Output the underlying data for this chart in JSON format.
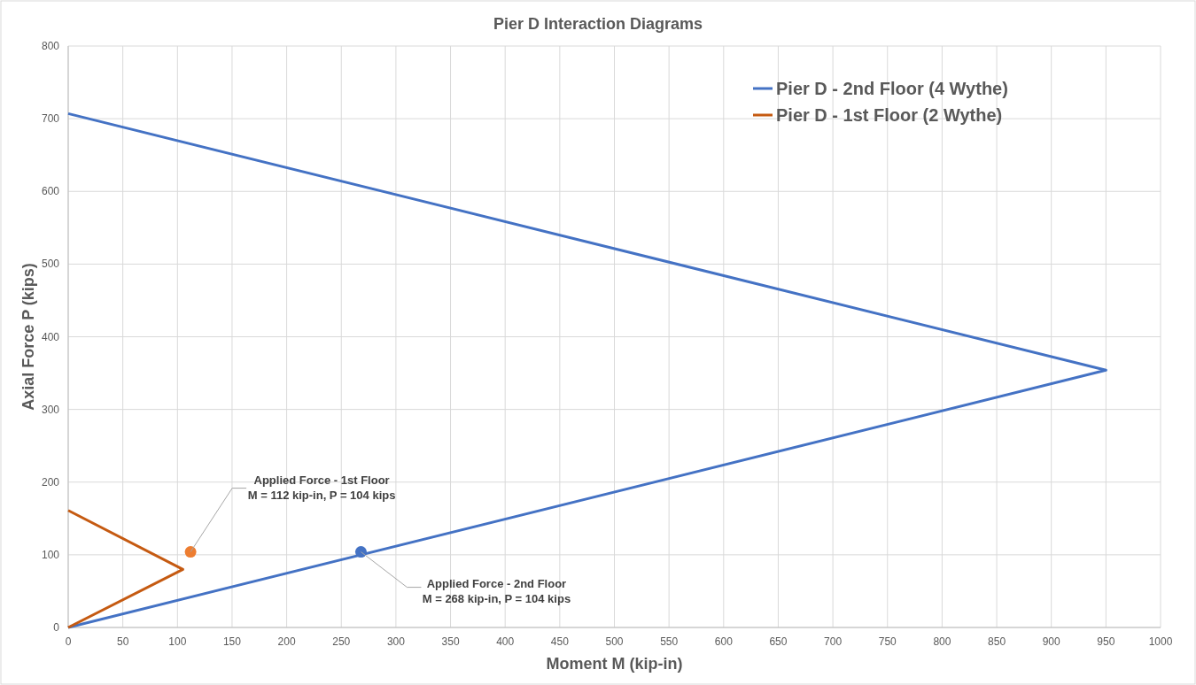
{
  "chart_data": {
    "type": "line",
    "title": "Pier D Interaction Diagrams",
    "xlabel": "Moment M (kip-in)",
    "ylabel": "Axial Force P (kips)",
    "xlim": [
      0,
      1000
    ],
    "xticks": [
      0,
      50,
      100,
      150,
      200,
      250,
      300,
      350,
      400,
      450,
      500,
      550,
      600,
      650,
      700,
      750,
      800,
      850,
      900,
      950,
      1000
    ],
    "ylim": [
      0,
      800
    ],
    "yticks": [
      0,
      100,
      200,
      300,
      400,
      500,
      600,
      700,
      800
    ],
    "grid": true,
    "legend": "top right",
    "marker": "none",
    "line_style": "solid",
    "series": [
      {
        "name": "Pier D - 2nd Floor (4 Wythe)",
        "color": "#4472c4",
        "x": [
          0,
          950,
          0
        ],
        "values": [
          707,
          354,
          0
        ]
      },
      {
        "name": "Pier D - 1st Floor (2 Wythe)",
        "color": "#c55a11",
        "x": [
          0,
          105,
          0
        ],
        "values": [
          161,
          80,
          0
        ]
      },
      {
        "type": "scatter",
        "marker": "circle",
        "color": "#ed7d31",
        "x": [
          112
        ],
        "values": [
          104
        ]
      },
      {
        "type": "scatter",
        "marker": "circle",
        "color": "#4472c4",
        "x": [
          268
        ],
        "values": [
          104
        ]
      }
    ],
    "annotations": [
      {
        "text": "Applied Force - 1st Floor\nM = 112 kip-in, P = 104 kips",
        "x": 112,
        "y": 104
      },
      {
        "text": "Applied Force - 2nd Floor\nM = 268 kip-in, P = 104 kips",
        "x": 268,
        "y": 104
      }
    ]
  }
}
